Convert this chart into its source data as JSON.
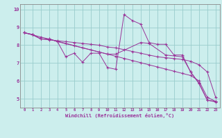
{
  "xlabel": "Windchill (Refroidissement éolien,°C)",
  "bg_color": "#cceeed",
  "line_color": "#993399",
  "grid_color": "#99cccc",
  "spine_color": "#888888",
  "ylim": [
    4.5,
    10.3
  ],
  "xlim": [
    -0.5,
    23.5
  ],
  "yticks": [
    5,
    6,
    7,
    8,
    9,
    10
  ],
  "xticks": [
    0,
    1,
    2,
    3,
    4,
    5,
    6,
    7,
    8,
    9,
    10,
    11,
    12,
    13,
    14,
    15,
    16,
    17,
    18,
    19,
    20,
    21,
    22,
    23
  ],
  "lines": [
    {
      "x": [
        0,
        1,
        2,
        3,
        4,
        5,
        6,
        7,
        8,
        9,
        10,
        11,
        12,
        13,
        14,
        15,
        16,
        17,
        18,
        19,
        20,
        21,
        22,
        23
      ],
      "y": [
        8.7,
        8.6,
        8.35,
        8.35,
        8.2,
        7.35,
        7.55,
        7.05,
        7.55,
        7.55,
        6.75,
        6.65,
        9.72,
        9.38,
        9.18,
        8.15,
        8.05,
        8.05,
        7.45,
        7.45,
        6.5,
        5.85,
        4.92,
        4.82
      ]
    },
    {
      "x": [
        0,
        1,
        2,
        3,
        4,
        5,
        6,
        7,
        8,
        9,
        10,
        11,
        12,
        13,
        14,
        15,
        16,
        17,
        18,
        19,
        20,
        21,
        22,
        23
      ],
      "y": [
        8.7,
        8.6,
        8.35,
        8.3,
        8.25,
        8.2,
        8.15,
        8.1,
        8.05,
        8.0,
        7.9,
        7.85,
        7.75,
        7.65,
        7.55,
        7.45,
        7.35,
        7.3,
        7.25,
        7.2,
        7.1,
        6.9,
        6.5,
        5.08
      ]
    },
    {
      "x": [
        0,
        1,
        2,
        3,
        4,
        5,
        6,
        7,
        8,
        9,
        10,
        11,
        12,
        13,
        14,
        15,
        16,
        17,
        18,
        19,
        20,
        21,
        22,
        23
      ],
      "y": [
        8.7,
        8.58,
        8.46,
        8.34,
        8.22,
        8.1,
        7.98,
        7.86,
        7.74,
        7.62,
        7.5,
        7.38,
        7.26,
        7.14,
        7.02,
        6.9,
        6.78,
        6.66,
        6.54,
        6.42,
        6.3,
        6.0,
        5.08,
        4.85
      ]
    },
    {
      "x": [
        0,
        1,
        2,
        3,
        4,
        10,
        11,
        14,
        15,
        17,
        19,
        20,
        21,
        22,
        23
      ],
      "y": [
        8.7,
        8.58,
        8.35,
        8.35,
        8.2,
        7.5,
        7.5,
        8.15,
        8.1,
        7.45,
        7.35,
        6.5,
        5.88,
        4.92,
        4.85
      ]
    }
  ]
}
